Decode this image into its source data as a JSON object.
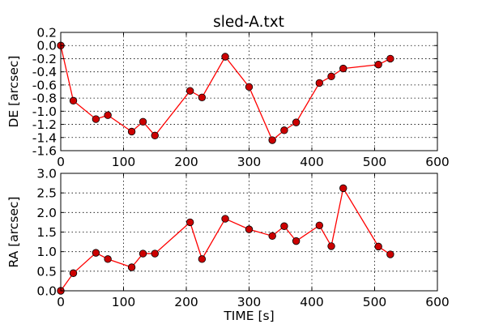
{
  "title": "sled-A.txt",
  "chart_data": [
    {
      "type": "line",
      "title": "sled-A.txt",
      "xlabel": "",
      "ylabel": "DE [arcsec]",
      "xlim": [
        0,
        600
      ],
      "ylim": [
        -1.6,
        0.2
      ],
      "xticks": [
        0,
        100,
        200,
        300,
        400,
        500,
        600
      ],
      "yticks": [
        0.2,
        0.0,
        -0.2,
        -0.4,
        -0.6,
        -0.8,
        -1.0,
        -1.2,
        -1.4,
        -1.6
      ],
      "show_x_tick_labels": true,
      "grid": true,
      "line_color": "#ff0000",
      "marker_color": "#cc0000",
      "x": [
        0,
        20,
        56,
        75,
        113,
        131,
        150,
        206,
        225,
        262,
        300,
        337,
        356,
        375,
        412,
        431,
        450,
        506,
        525
      ],
      "y": [
        0.0,
        -0.84,
        -1.12,
        -1.06,
        -1.31,
        -1.16,
        -1.37,
        -0.69,
        -0.79,
        -0.17,
        -0.63,
        -1.44,
        -1.29,
        -1.17,
        -0.57,
        -0.47,
        -0.35,
        -0.29,
        -0.2
      ]
    },
    {
      "type": "line",
      "xlabel": "TIME [s]",
      "ylabel": "RA [arcsec]",
      "xlim": [
        0,
        600
      ],
      "ylim": [
        0.0,
        3.0
      ],
      "xticks": [
        0,
        100,
        200,
        300,
        400,
        500,
        600
      ],
      "yticks": [
        0.0,
        0.5,
        1.0,
        1.5,
        2.0,
        2.5,
        3.0
      ],
      "show_x_tick_labels": true,
      "grid": true,
      "line_color": "#ff0000",
      "marker_color": "#cc0000",
      "x": [
        0,
        20,
        56,
        75,
        113,
        131,
        150,
        206,
        225,
        262,
        300,
        337,
        356,
        375,
        412,
        431,
        450,
        506,
        525
      ],
      "y": [
        0.0,
        0.45,
        0.97,
        0.81,
        0.6,
        0.95,
        0.95,
        1.75,
        0.81,
        1.84,
        1.57,
        1.4,
        1.65,
        1.27,
        1.67,
        1.14,
        2.62,
        1.13,
        0.93
      ]
    }
  ]
}
